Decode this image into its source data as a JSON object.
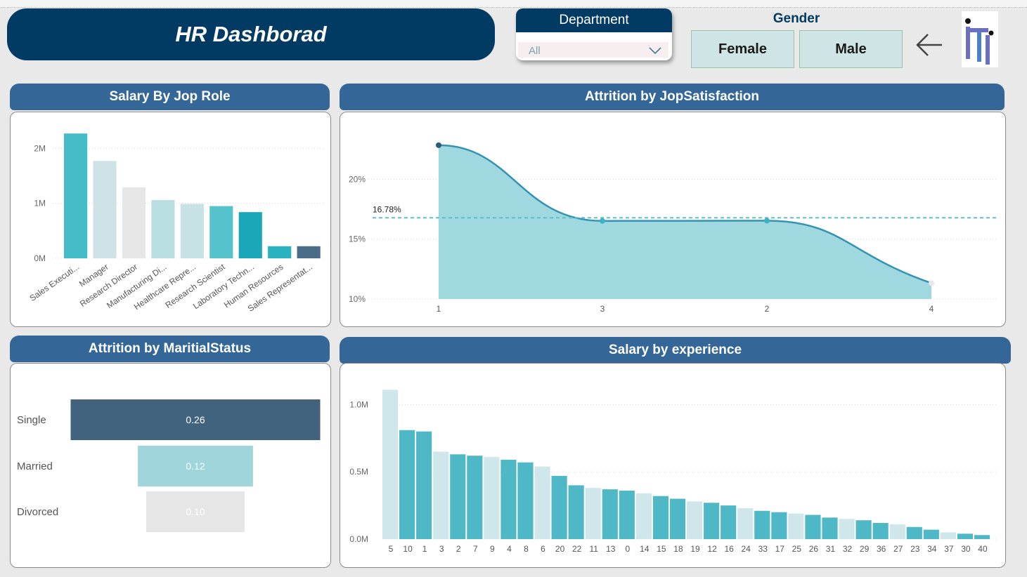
{
  "header": {
    "title": "HR Dashborad"
  },
  "slicer_department": {
    "label": "Department",
    "value": "All"
  },
  "slicer_gender": {
    "label": "Gender",
    "options": [
      "Female",
      "Male"
    ]
  },
  "colors": {
    "navy": "#013a63",
    "header_blue": "#346698",
    "teal": "#3eb8c6",
    "teal_light": "#a0d8e0",
    "grey": "#e6e6e6",
    "slate": "#41637e"
  },
  "chart_data": [
    {
      "id": "salary_by_role",
      "type": "bar",
      "title": "Salary By Jop Role",
      "categories": [
        "Sales Executi...",
        "Manager",
        "Research Director",
        "Manufacturing Di...",
        "Healthcare Repre...",
        "Research Scientist",
        "Laboratory Techn...",
        "Human Resources",
        "Sales Representat..."
      ],
      "values": [
        2270000,
        1770000,
        1290000,
        1060000,
        990000,
        950000,
        840000,
        220000,
        220000
      ],
      "colors": [
        "#44bdc8",
        "#cfe3e6",
        "#e6e6e6",
        "#badfe3",
        "#c6e2e5",
        "#56c2cb",
        "#1aa8b8",
        "#2bb2c1",
        "#4b6d8a"
      ],
      "ylim": [
        0,
        2400000
      ],
      "yticks": [
        {
          "v": 0,
          "label": "0M"
        },
        {
          "v": 1000000,
          "label": "1M"
        },
        {
          "v": 2000000,
          "label": "2M"
        }
      ],
      "xlabel": "",
      "ylabel": ""
    },
    {
      "id": "attrition_by_jobsat",
      "type": "area",
      "title": "Attrition by JopSatisfaction",
      "categories": [
        "1",
        "3",
        "2",
        "4"
      ],
      "values": [
        22.84,
        16.52,
        16.54,
        11.33
      ],
      "average": {
        "value": 16.78,
        "label": "16.78%"
      },
      "ylim": [
        10,
        25
      ],
      "yticks": [
        {
          "v": 10,
          "label": "10%"
        },
        {
          "v": 15,
          "label": "15%"
        },
        {
          "v": 20,
          "label": "20%"
        }
      ],
      "xlabel": "",
      "ylabel": ""
    },
    {
      "id": "attrition_by_marital",
      "type": "bar",
      "orientation": "horizontal-funnel",
      "title": "Attrition by MaritialStatus",
      "categories": [
        "Single",
        "Married",
        "Divorced"
      ],
      "values": [
        0.26,
        0.12,
        0.1
      ],
      "labels": [
        "0.26",
        "0.12",
        "0.10"
      ],
      "colors": [
        "#41637e",
        "#a0d6db",
        "#e6e6e6"
      ]
    },
    {
      "id": "salary_by_experience",
      "type": "bar",
      "title": "Salary by experience",
      "categories": [
        "5",
        "10",
        "1",
        "3",
        "2",
        "7",
        "9",
        "4",
        "8",
        "6",
        "20",
        "22",
        "11",
        "13",
        "0",
        "14",
        "15",
        "18",
        "19",
        "12",
        "16",
        "24",
        "33",
        "17",
        "25",
        "26",
        "31",
        "32",
        "29",
        "36",
        "27",
        "23",
        "34",
        "37",
        "30",
        "40"
      ],
      "values": [
        1110000,
        810000,
        800000,
        650000,
        630000,
        620000,
        610000,
        590000,
        570000,
        540000,
        470000,
        400000,
        380000,
        370000,
        360000,
        340000,
        320000,
        300000,
        280000,
        270000,
        250000,
        230000,
        210000,
        200000,
        190000,
        180000,
        160000,
        150000,
        140000,
        120000,
        110000,
        90000,
        70000,
        50000,
        40000,
        30000
      ],
      "ylim": [
        0,
        1200000
      ],
      "yticks": [
        {
          "v": 0,
          "label": "0.0M"
        },
        {
          "v": 500000,
          "label": "0.5M"
        },
        {
          "v": 1000000,
          "label": "1.0M"
        }
      ],
      "xlabel": "",
      "ylabel": ""
    }
  ]
}
